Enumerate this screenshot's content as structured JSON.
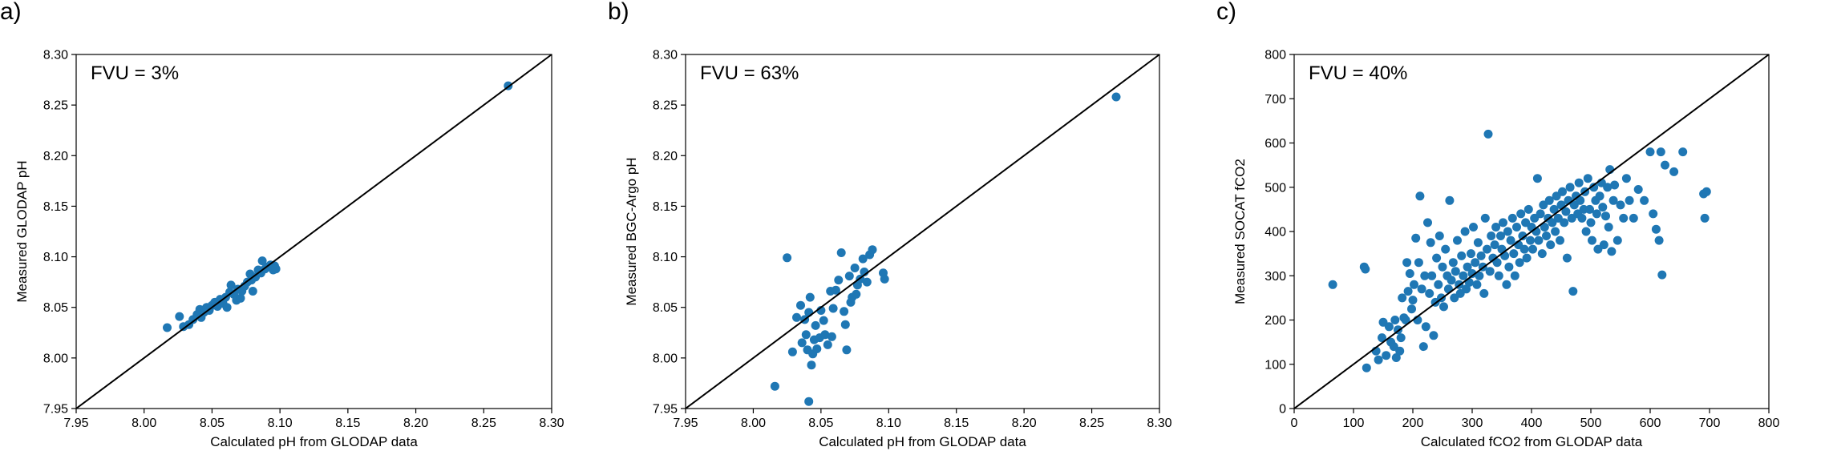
{
  "chart_data": [
    {
      "type": "scatter",
      "panel_label": "a)",
      "annotation": "FVU = 3%",
      "xlabel": "Calculated pH from GLODAP data",
      "ylabel": "Measured GLODAP pH",
      "xlim": [
        7.95,
        8.3
      ],
      "ylim": [
        7.95,
        8.3
      ],
      "xticks": [
        "7.95",
        "8.00",
        "8.05",
        "8.10",
        "8.15",
        "8.20",
        "8.25",
        "8.30"
      ],
      "yticks": [
        "7.95",
        "8.00",
        "8.05",
        "8.10",
        "8.15",
        "8.20",
        "8.25",
        "8.30"
      ],
      "identity_line": true,
      "grid": false,
      "marker_color": "#1f77b4",
      "points": [
        [
          8.017,
          8.03
        ],
        [
          8.026,
          8.041
        ],
        [
          8.029,
          8.031
        ],
        [
          8.033,
          8.033
        ],
        [
          8.036,
          8.038
        ],
        [
          8.039,
          8.043
        ],
        [
          8.041,
          8.048
        ],
        [
          8.042,
          8.04
        ],
        [
          8.044,
          8.045
        ],
        [
          8.046,
          8.05
        ],
        [
          8.048,
          8.047
        ],
        [
          8.05,
          8.052
        ],
        [
          8.052,
          8.055
        ],
        [
          8.054,
          8.051
        ],
        [
          8.056,
          8.058
        ],
        [
          8.058,
          8.054
        ],
        [
          8.06,
          8.06
        ],
        [
          8.061,
          8.05
        ],
        [
          8.063,
          8.065
        ],
        [
          8.064,
          8.072
        ],
        [
          8.066,
          8.063
        ],
        [
          8.068,
          8.057
        ],
        [
          8.069,
          8.068
        ],
        [
          8.071,
          8.059
        ],
        [
          8.072,
          8.066
        ],
        [
          8.074,
          8.071
        ],
        [
          8.076,
          8.075
        ],
        [
          8.078,
          8.083
        ],
        [
          8.079,
          8.077
        ],
        [
          8.08,
          8.066
        ],
        [
          8.082,
          8.08
        ],
        [
          8.084,
          8.087
        ],
        [
          8.086,
          8.084
        ],
        [
          8.087,
          8.096
        ],
        [
          8.089,
          8.088
        ],
        [
          8.091,
          8.09
        ],
        [
          8.093,
          8.092
        ],
        [
          8.095,
          8.087
        ],
        [
          8.096,
          8.091
        ],
        [
          8.097,
          8.088
        ],
        [
          8.268,
          8.269
        ]
      ]
    },
    {
      "type": "scatter",
      "panel_label": "b)",
      "annotation": "FVU = 63%",
      "xlabel": "Calculated pH from GLODAP data",
      "ylabel": "Measured BGC-Argo pH",
      "xlim": [
        7.95,
        8.3
      ],
      "ylim": [
        7.95,
        8.3
      ],
      "xticks": [
        "7.95",
        "8.00",
        "8.05",
        "8.10",
        "8.15",
        "8.20",
        "8.25",
        "8.30"
      ],
      "yticks": [
        "7.95",
        "8.00",
        "8.05",
        "8.10",
        "8.15",
        "8.20",
        "8.25",
        "8.30"
      ],
      "identity_line": true,
      "grid": false,
      "marker_color": "#1f77b4",
      "points": [
        [
          8.016,
          7.972
        ],
        [
          8.025,
          8.099
        ],
        [
          8.029,
          8.006
        ],
        [
          8.032,
          8.04
        ],
        [
          8.035,
          8.052
        ],
        [
          8.036,
          8.015
        ],
        [
          8.038,
          8.038
        ],
        [
          8.039,
          8.023
        ],
        [
          8.04,
          8.008
        ],
        [
          8.041,
          8.045
        ],
        [
          8.041,
          7.957
        ],
        [
          8.042,
          8.06
        ],
        [
          8.043,
          7.993
        ],
        [
          8.044,
          8.004
        ],
        [
          8.045,
          8.018
        ],
        [
          8.046,
          8.032
        ],
        [
          8.047,
          8.009
        ],
        [
          8.049,
          8.02
        ],
        [
          8.05,
          8.047
        ],
        [
          8.052,
          8.037
        ],
        [
          8.053,
          8.023
        ],
        [
          8.055,
          8.013
        ],
        [
          8.057,
          8.066
        ],
        [
          8.058,
          8.021
        ],
        [
          8.059,
          8.049
        ],
        [
          8.061,
          8.067
        ],
        [
          8.063,
          8.077
        ],
        [
          8.065,
          8.104
        ],
        [
          8.067,
          8.046
        ],
        [
          8.068,
          8.033
        ],
        [
          8.069,
          8.008
        ],
        [
          8.071,
          8.081
        ],
        [
          8.072,
          8.055
        ],
        [
          8.073,
          8.06
        ],
        [
          8.075,
          8.089
        ],
        [
          8.076,
          8.063
        ],
        [
          8.077,
          8.072
        ],
        [
          8.079,
          8.078
        ],
        [
          8.081,
          8.098
        ],
        [
          8.082,
          8.085
        ],
        [
          8.084,
          8.075
        ],
        [
          8.086,
          8.102
        ],
        [
          8.088,
          8.107
        ],
        [
          8.096,
          8.084
        ],
        [
          8.097,
          8.078
        ],
        [
          8.268,
          8.258
        ]
      ]
    },
    {
      "type": "scatter",
      "panel_label": "c)",
      "annotation": "FVU = 40%",
      "xlabel": "Calculated fCO2 from GLODAP data",
      "ylabel": "Measured SOCAT fCO2",
      "xlim": [
        0,
        800
      ],
      "ylim": [
        0,
        800
      ],
      "xticks": [
        "0",
        "100",
        "200",
        "300",
        "400",
        "500",
        "600",
        "700",
        "800"
      ],
      "yticks": [
        "0",
        "100",
        "200",
        "300",
        "400",
        "500",
        "600",
        "700",
        "800"
      ],
      "identity_line": true,
      "grid": false,
      "marker_color": "#1f77b4",
      "points": [
        [
          65,
          280
        ],
        [
          118,
          320
        ],
        [
          120,
          315
        ],
        [
          122,
          92
        ],
        [
          138,
          130
        ],
        [
          142,
          110
        ],
        [
          148,
          160
        ],
        [
          150,
          195
        ],
        [
          155,
          120
        ],
        [
          160,
          185
        ],
        [
          163,
          150
        ],
        [
          168,
          140
        ],
        [
          170,
          200
        ],
        [
          172,
          115
        ],
        [
          175,
          178
        ],
        [
          178,
          130
        ],
        [
          180,
          160
        ],
        [
          182,
          250
        ],
        [
          185,
          205
        ],
        [
          188,
          200
        ],
        [
          190,
          330
        ],
        [
          192,
          265
        ],
        [
          195,
          305
        ],
        [
          198,
          225
        ],
        [
          200,
          245
        ],
        [
          202,
          280
        ],
        [
          205,
          385
        ],
        [
          208,
          200
        ],
        [
          210,
          330
        ],
        [
          212,
          480
        ],
        [
          215,
          270
        ],
        [
          218,
          140
        ],
        [
          220,
          300
        ],
        [
          222,
          185
        ],
        [
          225,
          420
        ],
        [
          228,
          260
        ],
        [
          230,
          375
        ],
        [
          232,
          300
        ],
        [
          235,
          165
        ],
        [
          238,
          240
        ],
        [
          240,
          340
        ],
        [
          243,
          280
        ],
        [
          245,
          390
        ],
        [
          248,
          250
        ],
        [
          250,
          320
        ],
        [
          252,
          230
        ],
        [
          255,
          360
        ],
        [
          258,
          300
        ],
        [
          260,
          270
        ],
        [
          262,
          470
        ],
        [
          265,
          290
        ],
        [
          268,
          330
        ],
        [
          270,
          250
        ],
        [
          272,
          310
        ],
        [
          275,
          380
        ],
        [
          278,
          280
        ],
        [
          280,
          260
        ],
        [
          282,
          345
        ],
        [
          285,
          300
        ],
        [
          288,
          400
        ],
        [
          290,
          270
        ],
        [
          292,
          320
        ],
        [
          295,
          285
        ],
        [
          298,
          350
        ],
        [
          300,
          305
        ],
        [
          302,
          410
        ],
        [
          305,
          330
        ],
        [
          308,
          280
        ],
        [
          310,
          375
        ],
        [
          312,
          300
        ],
        [
          315,
          345
        ],
        [
          318,
          320
        ],
        [
          320,
          260
        ],
        [
          322,
          430
        ],
        [
          325,
          360
        ],
        [
          327,
          620
        ],
        [
          330,
          310
        ],
        [
          332,
          390
        ],
        [
          335,
          340
        ],
        [
          338,
          370
        ],
        [
          340,
          410
        ],
        [
          342,
          330
        ],
        [
          345,
          300
        ],
        [
          348,
          390
        ],
        [
          350,
          360
        ],
        [
          352,
          420
        ],
        [
          355,
          345
        ],
        [
          358,
          280
        ],
        [
          360,
          400
        ],
        [
          362,
          320
        ],
        [
          365,
          380
        ],
        [
          368,
          430
        ],
        [
          370,
          350
        ],
        [
          372,
          300
        ],
        [
          375,
          410
        ],
        [
          378,
          370
        ],
        [
          380,
          330
        ],
        [
          382,
          440
        ],
        [
          385,
          390
        ],
        [
          388,
          360
        ],
        [
          390,
          420
        ],
        [
          392,
          340
        ],
        [
          395,
          450
        ],
        [
          398,
          380
        ],
        [
          400,
          410
        ],
        [
          402,
          360
        ],
        [
          405,
          430
        ],
        [
          408,
          400
        ],
        [
          410,
          520
        ],
        [
          412,
          380
        ],
        [
          415,
          440
        ],
        [
          418,
          350
        ],
        [
          420,
          460
        ],
        [
          422,
          410
        ],
        [
          425,
          390
        ],
        [
          428,
          430
        ],
        [
          430,
          470
        ],
        [
          432,
          370
        ],
        [
          435,
          420
        ],
        [
          438,
          450
        ],
        [
          440,
          400
        ],
        [
          442,
          480
        ],
        [
          445,
          430
        ],
        [
          448,
          380
        ],
        [
          450,
          460
        ],
        [
          452,
          490
        ],
        [
          455,
          420
        ],
        [
          458,
          445
        ],
        [
          460,
          340
        ],
        [
          462,
          470
        ],
        [
          465,
          500
        ],
        [
          468,
          430
        ],
        [
          470,
          265
        ],
        [
          472,
          460
        ],
        [
          475,
          480
        ],
        [
          478,
          440
        ],
        [
          480,
          510
        ],
        [
          482,
          470
        ],
        [
          485,
          430
        ],
        [
          488,
          450
        ],
        [
          490,
          490
        ],
        [
          492,
          400
        ],
        [
          495,
          520
        ],
        [
          498,
          450
        ],
        [
          500,
          420
        ],
        [
          502,
          380
        ],
        [
          505,
          500
        ],
        [
          508,
          470
        ],
        [
          510,
          440
        ],
        [
          512,
          360
        ],
        [
          515,
          480
        ],
        [
          518,
          510
        ],
        [
          520,
          455
        ],
        [
          522,
          370
        ],
        [
          525,
          435
        ],
        [
          528,
          500
        ],
        [
          530,
          410
        ],
        [
          532,
          540
        ],
        [
          535,
          355
        ],
        [
          538,
          470
        ],
        [
          540,
          505
        ],
        [
          545,
          380
        ],
        [
          550,
          460
        ],
        [
          555,
          430
        ],
        [
          560,
          520
        ],
        [
          565,
          470
        ],
        [
          572,
          430
        ],
        [
          580,
          495
        ],
        [
          590,
          470
        ],
        [
          600,
          580
        ],
        [
          605,
          440
        ],
        [
          610,
          405
        ],
        [
          615,
          380
        ],
        [
          618,
          580
        ],
        [
          620,
          302
        ],
        [
          625,
          550
        ],
        [
          640,
          535
        ],
        [
          655,
          580
        ],
        [
          690,
          485
        ],
        [
          692,
          430
        ],
        [
          695,
          490
        ]
      ]
    }
  ]
}
